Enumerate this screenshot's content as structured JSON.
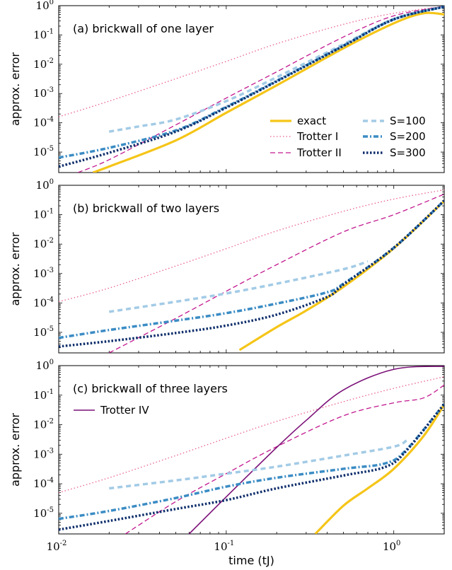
{
  "chart_data": {
    "type": "line",
    "xscale": "log",
    "yscale": "log",
    "xlim": [
      0.01,
      2
    ],
    "ylim": [
      2e-06,
      1
    ],
    "xlabel": "time (tJ)",
    "ylabel": "approx. error",
    "x_ticks": [
      "10",
      "10",
      "10"
    ],
    "x_tick_exponents": [
      "-2",
      "-1",
      "0"
    ],
    "y_ticks": [
      "10",
      "10",
      "10",
      "10",
      "10",
      "10"
    ],
    "y_tick_exponents": [
      "-5",
      "-4",
      "-3",
      "-2",
      "-1",
      "0"
    ],
    "series_styles": {
      "exact": {
        "color": "#f5c518",
        "width": 3.2,
        "dash": ""
      },
      "Trotter I": {
        "color": "#e8608e",
        "width": 1.3,
        "dash": "1.5,3"
      },
      "Trotter II": {
        "color": "#c2188f",
        "width": 1.3,
        "dash": "7,4"
      },
      "Trotter IV": {
        "color": "#7b1078",
        "width": 1.6,
        "dash": ""
      },
      "S=100": {
        "color": "#a3cbe6",
        "width": 3.5,
        "dash": "7,5"
      },
      "S=200": {
        "color": "#3b8cc4",
        "width": 3.5,
        "dash": "7,3,2,3"
      },
      "S=300": {
        "color": "#0e2e6b",
        "width": 3.5,
        "dash": "2.5,2.5"
      }
    },
    "panels": [
      {
        "title": "(a) brickwall of one layer",
        "legend": {
          "placement": "bottom-right",
          "col1": [
            "exact",
            "Trotter I",
            "Trotter II"
          ],
          "col2": [
            "S=100",
            "S=200",
            "S=300"
          ]
        },
        "series": [
          {
            "name": "Trotter I",
            "x": [
              0.01,
              0.02,
              0.05,
              0.1,
              0.2,
              0.5,
              1,
              2
            ],
            "y": [
              0.00016,
              0.00055,
              0.0032,
              0.0125,
              0.05,
              0.23,
              0.55,
              0.95
            ]
          },
          {
            "name": "Trotter II",
            "x": [
              0.013,
              0.02,
              0.05,
              0.1,
              0.2,
              0.5,
              1,
              2
            ],
            "y": [
              2e-06,
              5.5e-06,
              8.5e-05,
              0.0007,
              0.0055,
              0.085,
              0.45,
              0.95
            ]
          },
          {
            "name": "exact",
            "x": [
              0.016,
              0.02,
              0.05,
              0.1,
              0.2,
              0.5,
              1,
              1.5,
              2
            ],
            "y": [
              2e-06,
              3.2e-06,
              2.5e-05,
              0.00022,
              0.0019,
              0.035,
              0.25,
              0.55,
              0.5
            ]
          },
          {
            "name": "S=100",
            "x": [
              0.02,
              0.03,
              0.05,
              0.1,
              0.2,
              0.5,
              1,
              2
            ],
            "y": [
              5e-05,
              7.5e-05,
              0.00013,
              0.00055,
              0.0036,
              0.048,
              0.35,
              0.92
            ]
          },
          {
            "name": "S=200",
            "x": [
              0.01,
              0.02,
              0.05,
              0.1,
              0.2,
              0.5,
              1,
              2
            ],
            "y": [
              6.5e-06,
              1.4e-05,
              5.5e-05,
              0.00035,
              0.0027,
              0.043,
              0.34,
              0.92
            ]
          },
          {
            "name": "S=300",
            "x": [
              0.01,
              0.02,
              0.05,
              0.1,
              0.2,
              0.5,
              1,
              2
            ],
            "y": [
              3.2e-06,
              9.5e-06,
              5e-05,
              0.00033,
              0.0026,
              0.042,
              0.34,
              0.92
            ]
          }
        ]
      },
      {
        "title": "(b) brickwall of two layers",
        "series": [
          {
            "name": "Trotter I",
            "x": [
              0.01,
              0.02,
              0.05,
              0.1,
              0.2,
              0.5,
              1,
              2
            ],
            "y": [
              0.00011,
              0.00032,
              0.0018,
              0.007,
              0.028,
              0.13,
              0.34,
              0.7
            ]
          },
          {
            "name": "Trotter II",
            "x": [
              0.02,
              0.05,
              0.1,
              0.2,
              0.5,
              1,
              2
            ],
            "y": [
              2e-06,
              3e-05,
              0.00025,
              0.002,
              0.026,
              0.1,
              0.5
            ]
          },
          {
            "name": "exact",
            "x": [
              0.12,
              0.2,
              0.3,
              0.5,
              1,
              2
            ],
            "y": [
              2.5e-06,
              1.5e-05,
              5.5e-05,
              0.00035,
              0.0072,
              0.29
            ]
          },
          {
            "name": "S=100",
            "x": [
              0.02,
              0.05,
              0.1,
              0.2,
              0.5,
              0.7
            ],
            "y": [
              5e-05,
              0.00011,
              0.00021,
              0.00045,
              0.0014,
              0.0026
            ]
          },
          {
            "name": "S=200",
            "x": [
              0.01,
              0.02,
              0.05,
              0.1,
              0.2,
              0.4,
              0.5,
              1,
              2
            ],
            "y": [
              6.5e-06,
              1.2e-05,
              2.5e-05,
              4.5e-05,
              9.5e-05,
              0.00023,
              0.00045,
              0.0075,
              0.3
            ]
          },
          {
            "name": "S=300",
            "x": [
              0.01,
              0.02,
              0.05,
              0.1,
              0.2,
              0.4,
              0.5,
              1,
              2
            ],
            "y": [
              3.3e-06,
              5e-06,
              9.5e-06,
              1.7e-05,
              4e-05,
              0.00016,
              0.00042,
              0.0075,
              0.3
            ]
          }
        ]
      },
      {
        "title": "(c) brickwall of three layers",
        "legend": {
          "placement": "top-left",
          "col1": [
            "Trotter IV"
          ]
        },
        "series": [
          {
            "name": "Trotter I",
            "x": [
              0.01,
              0.02,
              0.05,
              0.1,
              0.2,
              0.5,
              1,
              2
            ],
            "y": [
              5e-05,
              0.00016,
              0.0009,
              0.0035,
              0.013,
              0.06,
              0.17,
              0.42
            ]
          },
          {
            "name": "Trotter II",
            "x": [
              0.025,
              0.05,
              0.1,
              0.2,
              0.5,
              1,
              1.5,
              2
            ],
            "y": [
              2e-06,
              2.5e-05,
              0.00022,
              0.0018,
              0.02,
              0.055,
              0.08,
              0.22
            ]
          },
          {
            "name": "Trotter IV",
            "x": [
              0.06,
              0.1,
              0.2,
              0.3,
              0.5,
              1,
              2
            ],
            "y": [
              2e-06,
              3.6e-05,
              0.0017,
              0.014,
              0.15,
              0.75,
              0.95
            ]
          },
          {
            "name": "exact",
            "x": [
              0.34,
              0.5,
              0.7,
              1,
              1.5,
              2
            ],
            "y": [
              2e-06,
              1.8e-05,
              7e-05,
              0.00032,
              0.004,
              0.048
            ]
          },
          {
            "name": "S=100",
            "x": [
              0.02,
              0.05,
              0.1,
              0.2,
              0.5,
              1,
              1.2
            ],
            "y": [
              7e-05,
              0.00013,
              0.00022,
              0.00038,
              0.0009,
              0.0018,
              0.003
            ]
          },
          {
            "name": "S=200",
            "x": [
              0.01,
              0.02,
              0.05,
              0.1,
              0.2,
              0.5,
              0.9,
              1.2,
              2
            ],
            "y": [
              6.5e-06,
              1.2e-05,
              3.3e-05,
              8e-05,
              0.00016,
              0.00032,
              0.0005,
              0.0015,
              0.05
            ]
          },
          {
            "name": "S=300",
            "x": [
              0.01,
              0.02,
              0.05,
              0.1,
              0.2,
              0.5,
              0.9,
              1.2,
              2
            ],
            "y": [
              2.8e-06,
              5.5e-06,
              1.4e-05,
              2.8e-05,
              7e-05,
              0.00019,
              0.00038,
              0.0014,
              0.05
            ]
          }
        ]
      }
    ]
  }
}
